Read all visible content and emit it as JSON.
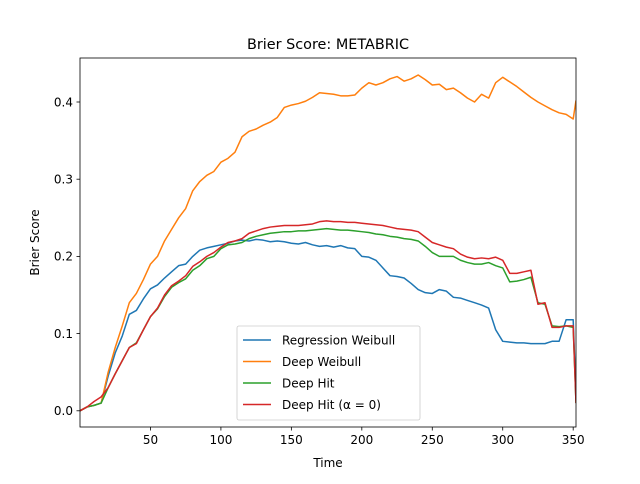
{
  "chart_data": {
    "type": "line",
    "title": "Brier Score: METABRIC",
    "xlabel": "Time",
    "ylabel": "Brier Score",
    "xlim": [
      0,
      352
    ],
    "ylim": [
      -0.021,
      0.457
    ],
    "xticks": [
      50,
      100,
      150,
      200,
      250,
      300,
      350
    ],
    "yticks": [
      0.0,
      0.1,
      0.2,
      0.3,
      0.4
    ],
    "ytick_labels": [
      "0.0",
      "0.1",
      "0.2",
      "0.3",
      "0.4"
    ],
    "grid": false,
    "legend": "lower center",
    "series": [
      {
        "name": "Regression Weibull",
        "color": "#1f77b4",
        "x": [
          0,
          5,
          10,
          15,
          20,
          25,
          30,
          35,
          40,
          45,
          50,
          55,
          60,
          65,
          70,
          75,
          80,
          85,
          90,
          95,
          100,
          105,
          110,
          115,
          120,
          125,
          130,
          135,
          140,
          145,
          150,
          155,
          160,
          165,
          170,
          175,
          180,
          185,
          190,
          195,
          200,
          205,
          210,
          215,
          220,
          225,
          230,
          235,
          240,
          245,
          250,
          255,
          260,
          265,
          270,
          275,
          280,
          285,
          290,
          295,
          300,
          305,
          310,
          315,
          320,
          325,
          330,
          335,
          340,
          345,
          350,
          352
        ],
        "values": [
          0.0,
          0.005,
          0.007,
          0.01,
          0.045,
          0.075,
          0.097,
          0.125,
          0.13,
          0.145,
          0.158,
          0.163,
          0.172,
          0.18,
          0.188,
          0.19,
          0.2,
          0.208,
          0.211,
          0.213,
          0.215,
          0.217,
          0.22,
          0.221,
          0.22,
          0.222,
          0.221,
          0.219,
          0.22,
          0.219,
          0.217,
          0.216,
          0.218,
          0.215,
          0.213,
          0.214,
          0.212,
          0.214,
          0.211,
          0.21,
          0.2,
          0.199,
          0.195,
          0.185,
          0.175,
          0.174,
          0.172,
          0.165,
          0.157,
          0.153,
          0.152,
          0.157,
          0.155,
          0.147,
          0.146,
          0.143,
          0.14,
          0.137,
          0.133,
          0.105,
          0.09,
          0.089,
          0.088,
          0.088,
          0.087,
          0.087,
          0.087,
          0.09,
          0.09,
          0.118,
          0.118,
          0.02
        ]
      },
      {
        "name": "Deep Weibull",
        "color": "#ff7f0e",
        "x": [
          0,
          5,
          10,
          15,
          20,
          25,
          30,
          35,
          40,
          45,
          50,
          55,
          60,
          65,
          70,
          75,
          80,
          85,
          90,
          95,
          100,
          105,
          110,
          115,
          120,
          125,
          130,
          135,
          140,
          145,
          150,
          155,
          160,
          165,
          170,
          175,
          180,
          185,
          190,
          195,
          200,
          205,
          210,
          215,
          220,
          225,
          230,
          235,
          240,
          245,
          250,
          255,
          260,
          265,
          270,
          275,
          280,
          285,
          290,
          295,
          300,
          305,
          310,
          315,
          320,
          325,
          330,
          335,
          340,
          345,
          350,
          352
        ],
        "values": [
          0.0,
          0.005,
          0.007,
          0.01,
          0.05,
          0.082,
          0.11,
          0.14,
          0.152,
          0.17,
          0.19,
          0.2,
          0.22,
          0.235,
          0.25,
          0.262,
          0.285,
          0.297,
          0.305,
          0.31,
          0.322,
          0.327,
          0.335,
          0.355,
          0.362,
          0.365,
          0.37,
          0.374,
          0.38,
          0.393,
          0.396,
          0.398,
          0.401,
          0.406,
          0.412,
          0.411,
          0.41,
          0.408,
          0.408,
          0.409,
          0.418,
          0.425,
          0.422,
          0.425,
          0.43,
          0.433,
          0.427,
          0.43,
          0.435,
          0.429,
          0.422,
          0.423,
          0.416,
          0.418,
          0.412,
          0.405,
          0.4,
          0.41,
          0.405,
          0.425,
          0.432,
          0.426,
          0.42,
          0.413,
          0.406,
          0.4,
          0.395,
          0.39,
          0.386,
          0.384,
          0.378,
          0.402
        ]
      },
      {
        "name": "Deep Hit",
        "color": "#2ca02c",
        "x": [
          0,
          5,
          10,
          15,
          20,
          25,
          30,
          35,
          40,
          45,
          50,
          55,
          60,
          65,
          70,
          75,
          80,
          85,
          90,
          95,
          100,
          105,
          110,
          115,
          120,
          125,
          130,
          135,
          140,
          145,
          150,
          155,
          160,
          165,
          170,
          175,
          180,
          185,
          190,
          195,
          200,
          205,
          210,
          215,
          220,
          225,
          230,
          235,
          240,
          245,
          250,
          255,
          260,
          265,
          270,
          275,
          280,
          285,
          290,
          295,
          300,
          305,
          310,
          315,
          320,
          325,
          330,
          335,
          340,
          345,
          350,
          352
        ],
        "values": [
          0.0,
          0.005,
          0.007,
          0.01,
          0.03,
          0.048,
          0.065,
          0.082,
          0.088,
          0.105,
          0.122,
          0.132,
          0.148,
          0.16,
          0.166,
          0.171,
          0.182,
          0.188,
          0.197,
          0.2,
          0.21,
          0.215,
          0.216,
          0.218,
          0.223,
          0.226,
          0.228,
          0.23,
          0.231,
          0.232,
          0.232,
          0.233,
          0.233,
          0.234,
          0.235,
          0.236,
          0.235,
          0.234,
          0.234,
          0.233,
          0.232,
          0.231,
          0.229,
          0.228,
          0.226,
          0.225,
          0.223,
          0.222,
          0.22,
          0.213,
          0.205,
          0.2,
          0.2,
          0.2,
          0.195,
          0.192,
          0.19,
          0.19,
          0.192,
          0.188,
          0.185,
          0.167,
          0.168,
          0.17,
          0.173,
          0.14,
          0.138,
          0.11,
          0.109,
          0.11,
          0.108,
          0.01
        ]
      },
      {
        "name": "Deep Hit (α = 0)",
        "color": "#d62728",
        "x": [
          0,
          5,
          10,
          15,
          20,
          25,
          30,
          35,
          40,
          45,
          50,
          55,
          60,
          65,
          70,
          75,
          80,
          85,
          90,
          95,
          100,
          105,
          110,
          115,
          120,
          125,
          130,
          135,
          140,
          145,
          150,
          155,
          160,
          165,
          170,
          175,
          180,
          185,
          190,
          195,
          200,
          205,
          210,
          215,
          220,
          225,
          230,
          235,
          240,
          245,
          250,
          255,
          260,
          265,
          270,
          275,
          280,
          285,
          290,
          295,
          300,
          305,
          310,
          315,
          320,
          325,
          330,
          335,
          340,
          345,
          350,
          352
        ],
        "values": [
          0.0,
          0.005,
          0.012,
          0.018,
          0.03,
          0.048,
          0.065,
          0.082,
          0.087,
          0.105,
          0.122,
          0.133,
          0.15,
          0.162,
          0.168,
          0.175,
          0.187,
          0.193,
          0.2,
          0.205,
          0.212,
          0.218,
          0.22,
          0.223,
          0.23,
          0.233,
          0.236,
          0.238,
          0.239,
          0.24,
          0.24,
          0.24,
          0.241,
          0.242,
          0.245,
          0.246,
          0.245,
          0.245,
          0.244,
          0.244,
          0.243,
          0.242,
          0.241,
          0.24,
          0.238,
          0.236,
          0.235,
          0.234,
          0.232,
          0.225,
          0.218,
          0.215,
          0.212,
          0.21,
          0.203,
          0.199,
          0.197,
          0.198,
          0.197,
          0.199,
          0.195,
          0.178,
          0.178,
          0.18,
          0.182,
          0.138,
          0.14,
          0.108,
          0.108,
          0.11,
          0.11,
          0.01
        ]
      }
    ]
  }
}
